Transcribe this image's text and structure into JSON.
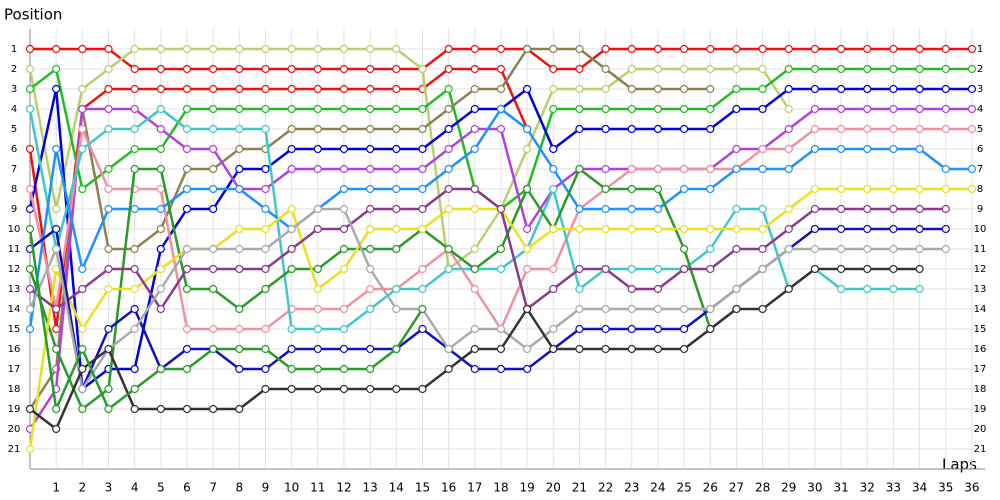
{
  "chart_data": {
    "type": "line",
    "y_axis_label": "Position",
    "x_axis_label": "Laps",
    "inverted_y": true,
    "grid": true,
    "xlim": [
      0,
      36.5
    ],
    "ylim": [
      0,
      22
    ],
    "xticks": [
      1,
      2,
      3,
      4,
      5,
      6,
      7,
      8,
      9,
      10,
      11,
      12,
      13,
      14,
      15,
      16,
      17,
      18,
      19,
      20,
      21,
      22,
      23,
      24,
      25,
      26,
      27,
      28,
      29,
      30,
      31,
      32,
      33,
      34,
      35,
      36
    ],
    "yticks": [
      1,
      2,
      3,
      4,
      5,
      6,
      7,
      8,
      9,
      10,
      11,
      12,
      13,
      14,
      15,
      16,
      17,
      18,
      19,
      20,
      21
    ],
    "x": [
      0,
      1,
      2,
      3,
      4,
      5,
      6,
      7,
      8,
      9,
      10,
      11,
      12,
      13,
      14,
      15,
      16,
      17,
      18,
      19,
      20,
      21,
      22,
      23,
      24,
      25,
      26,
      27,
      28,
      29,
      30,
      31,
      32,
      33,
      34,
      35,
      36
    ],
    "series": [
      {
        "color": "#ee1111",
        "values": [
          1,
          1,
          1,
          1,
          2,
          2,
          2,
          2,
          2,
          2,
          2,
          2,
          2,
          2,
          2,
          2,
          1,
          1,
          1,
          1,
          2,
          2,
          1,
          1,
          1,
          1,
          1,
          1,
          1,
          1,
          1,
          1,
          1,
          1,
          1,
          1,
          1
        ]
      },
      {
        "color": "#ee1111",
        "values": [
          6,
          15,
          4,
          3,
          3,
          3,
          3,
          3,
          3,
          3,
          3,
          3,
          3,
          3,
          3,
          3,
          2,
          2,
          2,
          5,
          null,
          null,
          null,
          null,
          null,
          null,
          null,
          null,
          null,
          null,
          null,
          null,
          null,
          null,
          null,
          null,
          null
        ]
      },
      {
        "color": "#b8d070",
        "values": [
          2,
          9,
          3,
          2,
          1,
          1,
          1,
          1,
          1,
          1,
          1,
          1,
          1,
          1,
          1,
          2,
          12,
          11,
          9,
          6,
          3,
          3,
          3,
          2,
          2,
          2,
          2,
          2,
          2,
          4,
          null,
          null,
          null,
          null,
          null,
          null,
          null
        ]
      },
      {
        "color": "#22bb22",
        "values": [
          3,
          2,
          8,
          7,
          6,
          6,
          4,
          4,
          4,
          4,
          4,
          4,
          4,
          4,
          4,
          4,
          3,
          8,
          9,
          8,
          4,
          4,
          4,
          4,
          4,
          4,
          4,
          3,
          3,
          2,
          2,
          2,
          2,
          2,
          2,
          2,
          2
        ]
      },
      {
        "color": "#0000dd",
        "values": [
          9,
          3,
          18,
          17,
          17,
          11,
          9,
          9,
          7,
          7,
          6,
          6,
          6,
          6,
          6,
          6,
          5,
          4,
          4,
          3,
          6,
          5,
          5,
          5,
          5,
          5,
          5,
          4,
          4,
          3,
          3,
          3,
          3,
          3,
          3,
          3,
          3
        ]
      },
      {
        "color": "#8b8050",
        "values": [
          19,
          17,
          4,
          11,
          11,
          10,
          7,
          7,
          6,
          6,
          5,
          5,
          5,
          5,
          5,
          5,
          4,
          3,
          3,
          1,
          1,
          1,
          2,
          3,
          3,
          3,
          3,
          null,
          null,
          null,
          null,
          null,
          null,
          null,
          null,
          null,
          null
        ]
      },
      {
        "color": "#b040e0",
        "values": [
          20,
          18,
          4,
          4,
          4,
          5,
          6,
          6,
          8,
          8,
          7,
          7,
          7,
          7,
          7,
          7,
          6,
          5,
          5,
          10,
          8,
          7,
          7,
          7,
          7,
          7,
          7,
          6,
          6,
          5,
          4,
          4,
          4,
          4,
          4,
          4,
          4
        ]
      },
      {
        "color": "#f090a0",
        "values": [
          8,
          14,
          5,
          8,
          8,
          8,
          15,
          15,
          15,
          15,
          14,
          14,
          14,
          13,
          13,
          12,
          11,
          13,
          15,
          12,
          12,
          9,
          8,
          7,
          7,
          7,
          7,
          7,
          6,
          6,
          5,
          5,
          5,
          5,
          5,
          5,
          5
        ]
      },
      {
        "color": "#40c8c8",
        "values": [
          4,
          11,
          6,
          5,
          5,
          4,
          5,
          5,
          5,
          5,
          15,
          15,
          15,
          14,
          13,
          13,
          12,
          12,
          12,
          11,
          8,
          13,
          12,
          12,
          12,
          12,
          11,
          9,
          9,
          13,
          12,
          13,
          13,
          13,
          13,
          null,
          null
        ]
      },
      {
        "color": "#1e90ff",
        "values": [
          15,
          6,
          12,
          9,
          9,
          9,
          8,
          8,
          8,
          9,
          10,
          9,
          8,
          8,
          8,
          8,
          7,
          6,
          4,
          5,
          7,
          9,
          9,
          9,
          9,
          8,
          8,
          7,
          7,
          7,
          6,
          6,
          6,
          6,
          6,
          7,
          7
        ]
      },
      {
        "color": "#2a9a2a",
        "values": [
          12,
          16,
          19,
          18,
          7,
          7,
          13,
          13,
          14,
          13,
          12,
          12,
          11,
          11,
          11,
          10,
          11,
          12,
          11,
          8,
          10,
          7,
          8,
          8,
          8,
          11,
          15,
          14,
          null,
          null,
          null,
          null,
          null,
          null,
          null,
          null,
          null
        ]
      },
      {
        "color": "#e8e020",
        "values": [
          21,
          12,
          15,
          13,
          13,
          12,
          11,
          11,
          10,
          10,
          9,
          13,
          12,
          10,
          10,
          10,
          9,
          9,
          9,
          11,
          10,
          10,
          10,
          10,
          10,
          10,
          10,
          10,
          10,
          9,
          8,
          8,
          8,
          8,
          8,
          8,
          8
        ]
      },
      {
        "color": "#8a3a8a",
        "values": [
          13,
          14,
          13,
          12,
          12,
          14,
          12,
          12,
          12,
          12,
          11,
          10,
          10,
          9,
          9,
          9,
          8,
          8,
          9,
          14,
          13,
          12,
          12,
          13,
          13,
          12,
          12,
          11,
          11,
          10,
          9,
          9,
          9,
          9,
          9,
          9,
          null
        ]
      },
      {
        "color": "#1010c0",
        "values": [
          11,
          10,
          18,
          15,
          14,
          17,
          16,
          16,
          17,
          17,
          16,
          16,
          16,
          16,
          16,
          15,
          16,
          17,
          17,
          17,
          16,
          15,
          15,
          15,
          15,
          15,
          14,
          13,
          12,
          11,
          10,
          10,
          10,
          10,
          10,
          10,
          null
        ]
      },
      {
        "color": "#aaaaaa",
        "values": [
          14,
          11,
          18,
          16,
          15,
          13,
          11,
          11,
          11,
          11,
          10,
          9,
          9,
          12,
          14,
          14,
          16,
          15,
          15,
          16,
          15,
          14,
          14,
          14,
          14,
          14,
          14,
          13,
          12,
          11,
          11,
          11,
          11,
          11,
          11,
          11,
          null
        ]
      },
      {
        "color": "#333333",
        "values": [
          19,
          20,
          17,
          16,
          19,
          19,
          19,
          19,
          19,
          18,
          18,
          18,
          18,
          18,
          18,
          18,
          17,
          16,
          16,
          14,
          16,
          16,
          16,
          16,
          16,
          16,
          15,
          14,
          14,
          13,
          12,
          12,
          12,
          12,
          12,
          null,
          null
        ]
      },
      {
        "color": "#2a9a2a",
        "values": [
          10,
          19,
          16,
          19,
          18,
          17,
          17,
          16,
          16,
          16,
          17,
          17,
          17,
          17,
          16,
          14,
          null,
          null,
          null,
          null,
          null,
          null,
          null,
          null,
          null,
          null,
          null,
          null,
          null,
          null,
          null,
          null,
          null,
          null,
          null,
          null,
          null
        ]
      }
    ]
  }
}
